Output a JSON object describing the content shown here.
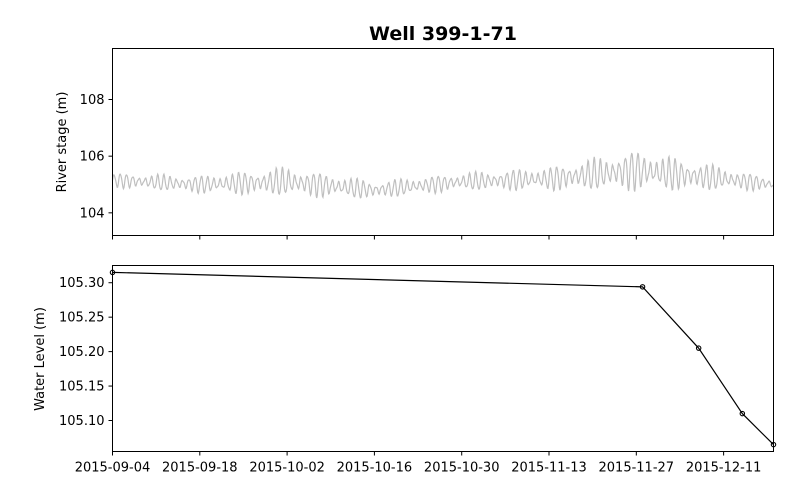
{
  "chart_data": [
    {
      "type": "line",
      "title": "Well 399-1-71",
      "ylabel": "River stage (m)",
      "xlabel": "",
      "x_range": [
        "2015-09-04",
        "2015-12-19"
      ],
      "ylim": [
        103.2,
        109.8
      ],
      "yticks": [
        104,
        106,
        108
      ],
      "xticks": [
        "2015-09-04",
        "2015-09-18",
        "2015-10-02",
        "2015-10-16",
        "2015-10-30",
        "2015-11-13",
        "2015-11-27",
        "2015-12-11"
      ],
      "x_tick_labels_shown": false,
      "grid": false,
      "series": [
        {
          "color": "#bfbfbf",
          "style": "oscillating (approx. daily cycle)",
          "envelope": [
            {
              "date": "2015-09-04",
              "min": 104.9,
              "max": 105.4
            },
            {
              "date": "2015-09-18",
              "min": 104.7,
              "max": 105.3
            },
            {
              "date": "2015-10-02",
              "min": 104.6,
              "max": 105.6
            },
            {
              "date": "2015-10-16",
              "min": 104.5,
              "max": 105.1
            },
            {
              "date": "2015-10-30",
              "min": 104.8,
              "max": 105.4
            },
            {
              "date": "2015-11-13",
              "min": 104.8,
              "max": 105.6
            },
            {
              "date": "2015-11-27",
              "min": 104.8,
              "max": 106.2
            },
            {
              "date": "2015-12-11",
              "min": 104.8,
              "max": 105.6
            },
            {
              "date": "2015-12-19",
              "min": 104.8,
              "max": 105.2
            }
          ]
        }
      ]
    },
    {
      "type": "line",
      "title": "",
      "ylabel": "Water Level (m)",
      "xlabel": "",
      "x_range": [
        "2015-09-04",
        "2015-12-19"
      ],
      "ylim": [
        105.055,
        105.325
      ],
      "yticks": [
        105.1,
        105.15,
        105.2,
        105.25,
        105.3
      ],
      "ytick_labels": [
        "105.10",
        "105.15",
        "105.20",
        "105.25",
        "105.30"
      ],
      "xticks": [
        "2015-09-04",
        "2015-09-18",
        "2015-10-02",
        "2015-10-16",
        "2015-10-30",
        "2015-11-13",
        "2015-11-27",
        "2015-12-11"
      ],
      "grid": false,
      "series": [
        {
          "color": "#000000",
          "marker": "circle-open",
          "points": [
            {
              "x": "2015-09-04",
              "y": 105.315
            },
            {
              "x": "2015-11-28",
              "y": 105.294
            },
            {
              "x": "2015-12-07",
              "y": 105.205
            },
            {
              "x": "2015-12-14",
              "y": 105.11
            },
            {
              "x": "2015-12-19",
              "y": 105.065
            }
          ]
        }
      ]
    }
  ]
}
